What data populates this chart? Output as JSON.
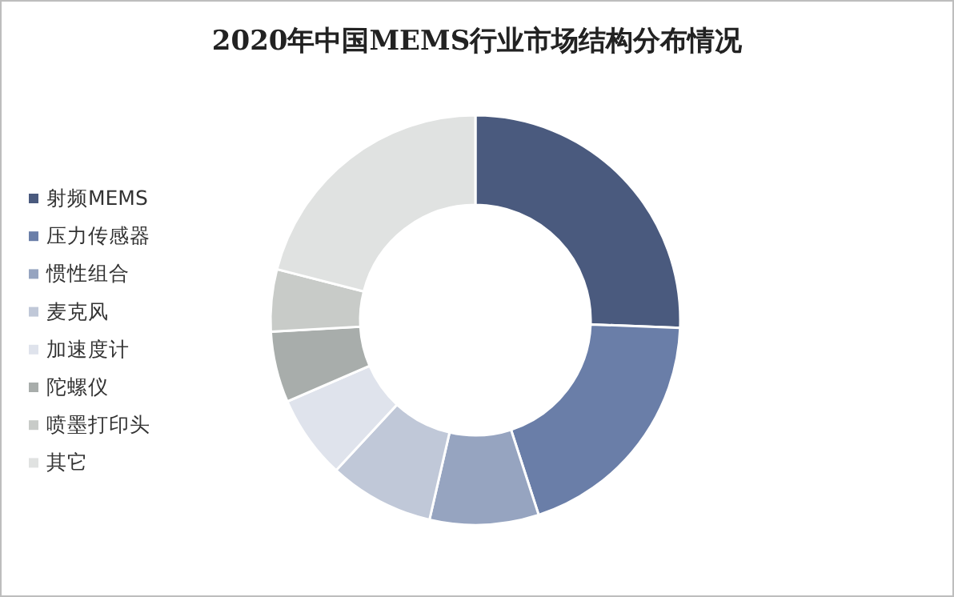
{
  "chart_data": {
    "type": "donut",
    "title": "2020年中国MEMS行业市场结构分布情况",
    "categories": [
      "射频MEMS",
      "压力传感器",
      "惯性组合",
      "麦克风",
      "加速度计",
      "陀螺仪",
      "喷墨打印头",
      "其它"
    ],
    "values": [
      25.6,
      19.4,
      8.6,
      8.3,
      6.6,
      5.6,
      4.9,
      21.0
    ],
    "colors": [
      "#4a5a7e",
      "#6a7ea8",
      "#96a4c0",
      "#c0c8d8",
      "#dfe3ec",
      "#a8adab",
      "#c8cbc8",
      "#e0e2e1"
    ],
    "legend": "left"
  }
}
